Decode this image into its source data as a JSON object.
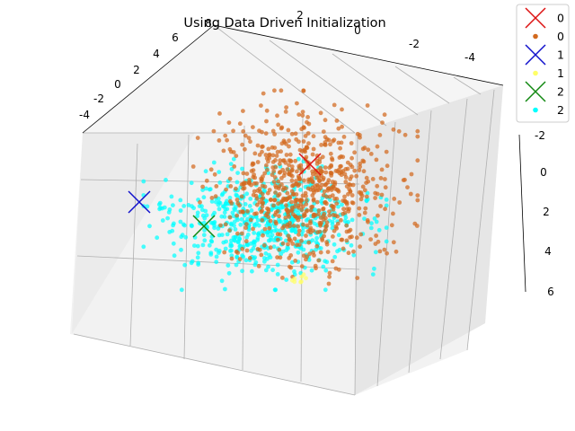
{
  "chart_data": {
    "type": "scatter",
    "projection": "3d",
    "title": "Using Data Driven Initialization",
    "xlabel": "",
    "ylabel": "",
    "zlabel": "",
    "axes": {
      "a": {
        "ticks": [
          -4,
          -2,
          0,
          2,
          4,
          6
        ],
        "range": [
          -5,
          7
        ]
      },
      "b": {
        "ticks": [
          -4,
          -2,
          0,
          2,
          8
        ],
        "range": [
          -5,
          9
        ]
      },
      "c": {
        "ticks": [
          -2,
          0,
          2,
          4,
          6
        ],
        "range": [
          -3,
          7
        ]
      }
    },
    "grid": true,
    "legend_position": "top-right",
    "legend": [
      {
        "label": "0",
        "kind": "centroid",
        "color": "#dd1111"
      },
      {
        "label": "0",
        "kind": "points",
        "color": "#d2691e"
      },
      {
        "label": "1",
        "kind": "centroid",
        "color": "#1111cc"
      },
      {
        "label": "1",
        "kind": "points",
        "color": "#ffff66"
      },
      {
        "label": "2",
        "kind": "centroid",
        "color": "#118811"
      },
      {
        "label": "2",
        "kind": "points",
        "color": "#00ffff"
      }
    ],
    "centroids": [
      {
        "name": "0",
        "color": "#dd1111",
        "x": 345,
        "y": 183
      },
      {
        "name": "1",
        "color": "#1111cc",
        "x": 155,
        "y": 225
      },
      {
        "name": "2",
        "color": "#118811",
        "x": 227,
        "y": 252
      }
    ],
    "clusters": [
      {
        "name": "2",
        "color": "#00ffff",
        "count": 620,
        "center": [
          295,
          250
        ],
        "spread": [
          52,
          28
        ],
        "seed": 11
      },
      {
        "name": "0",
        "color": "#d2691e",
        "count": 720,
        "center": [
          340,
          210
        ],
        "spread": [
          48,
          42
        ],
        "seed": 7
      },
      {
        "name": "1",
        "color": "#ffff66",
        "count": 8,
        "center": [
          335,
          312
        ],
        "spread": [
          6,
          3
        ],
        "seed": 3
      }
    ]
  }
}
